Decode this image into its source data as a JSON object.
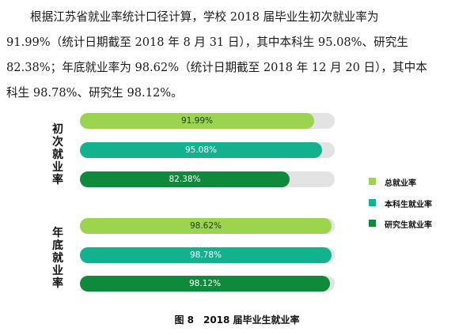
{
  "paragraph": {
    "lines": [
      "根据江苏省就业率统计口径计算，学校 2018 届毕业生初次就业率为",
      "91.99%（统计日期截至 2018 年 8 月 31 日），其中本科生 95.08%、研究生",
      "82.38%；年底就业率为 98.62%（统计日期截至 2018 年 12 月 20 日），其中本",
      "科生 98.78%、研究生 98.12%。"
    ]
  },
  "caption": "图 8　2018 届毕业生就业率",
  "colors": {
    "total": "#9cd34f",
    "undergrad": "#12b28f",
    "graduate": "#0f8a3c",
    "track": "#e3e3e3"
  },
  "chart_data": {
    "type": "bar",
    "orientation": "horizontal",
    "xlim": [
      0,
      100
    ],
    "groups": [
      {
        "name": "初次就业率",
        "bars": [
          {
            "series": "总就业率",
            "value": 91.99,
            "label": "91.99%"
          },
          {
            "series": "本科生就业率",
            "value": 95.08,
            "label": "95.08%"
          },
          {
            "series": "研究生就业率",
            "value": 82.38,
            "label": "82.38%"
          }
        ]
      },
      {
        "name": "年底就业率",
        "bars": [
          {
            "series": "总就业率",
            "value": 98.62,
            "label": "98.62%"
          },
          {
            "series": "本科生就业率",
            "value": 98.78,
            "label": "98.78%"
          },
          {
            "series": "研究生就业率",
            "value": 98.12,
            "label": "98.12%"
          }
        ]
      }
    ],
    "legend": {
      "placement": "right",
      "items": [
        "总就业率",
        "本科生就业率",
        "研究生就业率"
      ]
    },
    "grid": false
  }
}
